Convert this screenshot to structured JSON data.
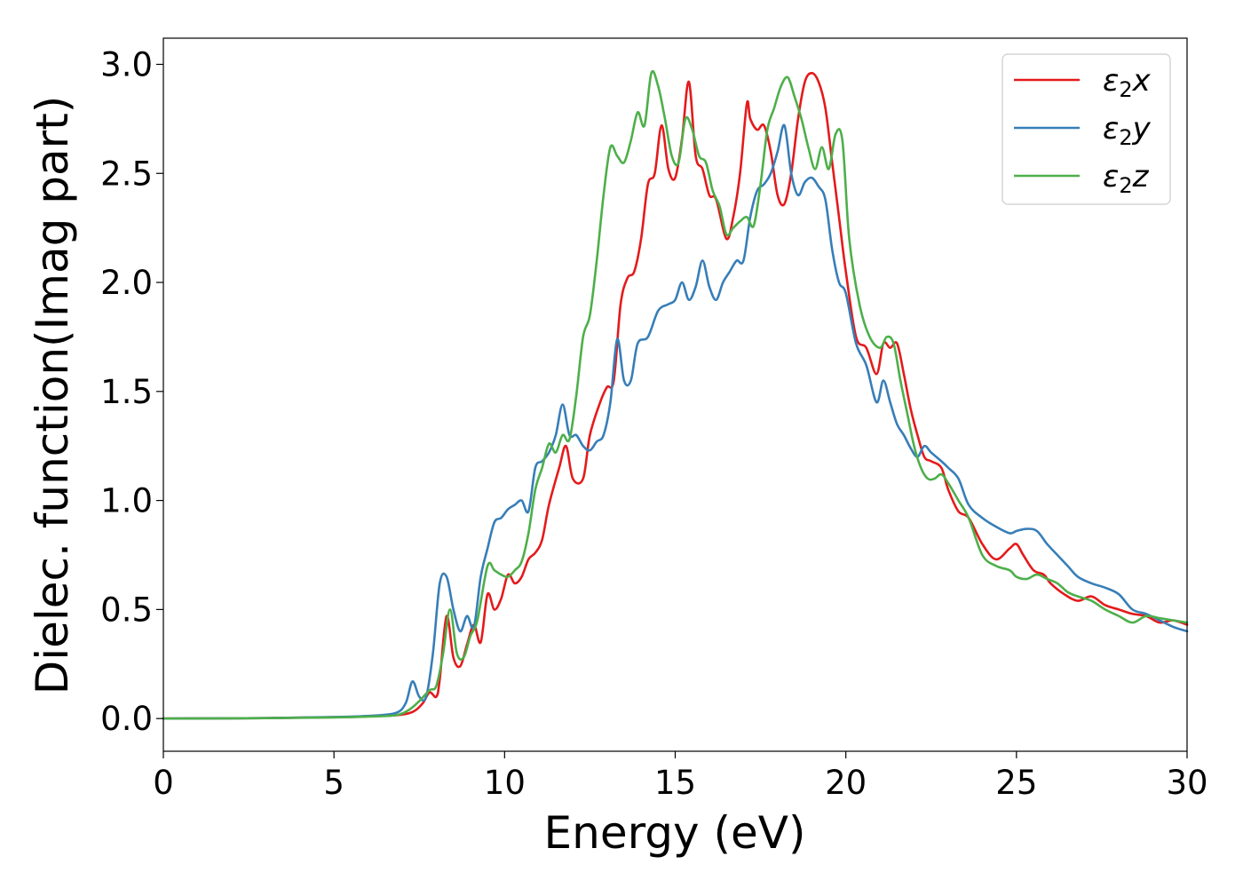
{
  "chart_data": {
    "type": "line",
    "title": "",
    "xlabel": "Energy (eV)",
    "ylabel": "Dielec. function(Imag part)",
    "xlim": [
      0,
      30
    ],
    "ylim": [
      -0.15,
      3.12
    ],
    "xticks": [
      "0",
      "5",
      "10",
      "15",
      "20",
      "25",
      "30"
    ],
    "yticks": [
      "0.0",
      "0.5",
      "1.0",
      "1.5",
      "2.0",
      "2.5",
      "3.0"
    ],
    "grid": false,
    "legend_position": "top-right",
    "series": [
      {
        "name": "ε2x",
        "label_base": "ε",
        "label_sub": "2",
        "label_var": "x",
        "color": "#e41a1c",
        "x": [
          0,
          3,
          5,
          6,
          6.8,
          7.3,
          7.6,
          7.8,
          8.0,
          8.1,
          8.3,
          8.5,
          8.7,
          8.9,
          9.1,
          9.3,
          9.5,
          9.7,
          9.9,
          10.1,
          10.3,
          10.5,
          10.7,
          10.9,
          11.1,
          11.3,
          11.6,
          11.8,
          12.0,
          12.3,
          12.5,
          12.8,
          13.0,
          13.2,
          13.4,
          13.6,
          13.8,
          14.0,
          14.2,
          14.4,
          14.6,
          14.8,
          15.0,
          15.2,
          15.4,
          15.6,
          15.8,
          16.0,
          16.2,
          16.5,
          16.7,
          16.9,
          17.1,
          17.2,
          17.4,
          17.6,
          17.8,
          18.0,
          18.2,
          18.4,
          18.6,
          18.8,
          19.0,
          19.2,
          19.4,
          19.6,
          19.8,
          20.0,
          20.3,
          20.6,
          20.9,
          21.1,
          21.3,
          21.5,
          21.7,
          21.9,
          22.1,
          22.3,
          22.5,
          22.8,
          23.0,
          23.3,
          23.6,
          24.0,
          24.4,
          24.8,
          25.0,
          25.2,
          25.5,
          25.8,
          26.0,
          26.4,
          26.8,
          27.2,
          27.6,
          28.0,
          28.4,
          28.8,
          29.2,
          29.6,
          30
        ],
        "y": [
          0,
          0.002,
          0.006,
          0.01,
          0.015,
          0.03,
          0.07,
          0.12,
          0.1,
          0.18,
          0.47,
          0.28,
          0.24,
          0.34,
          0.43,
          0.35,
          0.57,
          0.5,
          0.55,
          0.66,
          0.62,
          0.65,
          0.73,
          0.76,
          0.82,
          0.98,
          1.15,
          1.25,
          1.1,
          1.1,
          1.3,
          1.45,
          1.52,
          1.55,
          1.9,
          2.02,
          2.05,
          2.2,
          2.45,
          2.5,
          2.72,
          2.52,
          2.48,
          2.66,
          2.92,
          2.58,
          2.52,
          2.4,
          2.38,
          2.2,
          2.3,
          2.5,
          2.82,
          2.75,
          2.7,
          2.72,
          2.6,
          2.4,
          2.36,
          2.5,
          2.75,
          2.92,
          2.96,
          2.92,
          2.8,
          2.55,
          2.3,
          2.05,
          1.75,
          1.7,
          1.58,
          1.72,
          1.7,
          1.72,
          1.58,
          1.42,
          1.3,
          1.2,
          1.18,
          1.15,
          1.05,
          0.95,
          0.92,
          0.8,
          0.73,
          0.78,
          0.8,
          0.75,
          0.68,
          0.66,
          0.62,
          0.57,
          0.54,
          0.56,
          0.52,
          0.5,
          0.48,
          0.47,
          0.44,
          0.45,
          0.43
        ]
      },
      {
        "name": "ε2y",
        "label_base": "ε",
        "label_sub": "2",
        "label_var": "y",
        "color": "#377eb8",
        "x": [
          0,
          3,
          5,
          6,
          6.8,
          7.1,
          7.3,
          7.5,
          7.7,
          7.9,
          8.1,
          8.3,
          8.5,
          8.7,
          8.9,
          9.1,
          9.3,
          9.5,
          9.7,
          9.9,
          10.1,
          10.3,
          10.5,
          10.7,
          10.9,
          11.1,
          11.3,
          11.5,
          11.7,
          11.9,
          12.1,
          12.3,
          12.5,
          12.7,
          12.9,
          13.1,
          13.3,
          13.5,
          13.7,
          13.9,
          14.2,
          14.5,
          14.8,
          15.0,
          15.2,
          15.4,
          15.6,
          15.8,
          16.0,
          16.2,
          16.4,
          16.6,
          16.8,
          17.0,
          17.2,
          17.4,
          17.6,
          17.8,
          18.0,
          18.2,
          18.4,
          18.6,
          18.8,
          19.0,
          19.2,
          19.4,
          19.6,
          19.8,
          20.0,
          20.3,
          20.6,
          20.9,
          21.1,
          21.3,
          21.5,
          21.7,
          21.9,
          22.1,
          22.3,
          22.5,
          22.8,
          23.0,
          23.3,
          23.6,
          24.0,
          24.4,
          24.8,
          25.0,
          25.3,
          25.6,
          25.9,
          26.2,
          26.5,
          26.8,
          27.2,
          27.6,
          28.0,
          28.4,
          28.8,
          29.2,
          29.6,
          30
        ],
        "y": [
          0,
          0.002,
          0.007,
          0.012,
          0.025,
          0.07,
          0.17,
          0.1,
          0.1,
          0.3,
          0.62,
          0.65,
          0.5,
          0.4,
          0.47,
          0.42,
          0.65,
          0.78,
          0.9,
          0.92,
          0.96,
          0.98,
          1.0,
          0.95,
          1.15,
          1.18,
          1.22,
          1.3,
          1.44,
          1.3,
          1.3,
          1.25,
          1.23,
          1.27,
          1.3,
          1.45,
          1.74,
          1.55,
          1.55,
          1.72,
          1.75,
          1.87,
          1.9,
          1.92,
          2.0,
          1.92,
          1.98,
          2.1,
          1.98,
          1.92,
          2.0,
          2.05,
          2.1,
          2.1,
          2.3,
          2.42,
          2.45,
          2.5,
          2.6,
          2.72,
          2.5,
          2.4,
          2.46,
          2.48,
          2.44,
          2.38,
          2.15,
          2.0,
          1.95,
          1.72,
          1.62,
          1.45,
          1.55,
          1.45,
          1.35,
          1.3,
          1.24,
          1.2,
          1.25,
          1.22,
          1.18,
          1.15,
          1.1,
          0.98,
          0.92,
          0.88,
          0.85,
          0.86,
          0.87,
          0.86,
          0.8,
          0.75,
          0.7,
          0.65,
          0.62,
          0.6,
          0.57,
          0.5,
          0.48,
          0.45,
          0.42,
          0.4
        ]
      },
      {
        "name": "ε2z",
        "label_base": "ε",
        "label_sub": "2",
        "label_var": "z",
        "color": "#4daf4a",
        "x": [
          0,
          3,
          5,
          6,
          6.8,
          7.2,
          7.5,
          7.8,
          8.0,
          8.2,
          8.4,
          8.6,
          8.8,
          9.0,
          9.2,
          9.5,
          9.7,
          9.9,
          10.1,
          10.3,
          10.5,
          10.7,
          10.9,
          11.1,
          11.3,
          11.5,
          11.7,
          11.9,
          12.1,
          12.3,
          12.5,
          12.7,
          12.9,
          13.1,
          13.3,
          13.5,
          13.7,
          13.9,
          14.1,
          14.3,
          14.5,
          14.7,
          14.9,
          15.1,
          15.3,
          15.5,
          15.7,
          15.9,
          16.1,
          16.3,
          16.5,
          16.7,
          16.9,
          17.1,
          17.3,
          17.5,
          17.7,
          17.9,
          18.1,
          18.3,
          18.5,
          18.7,
          18.9,
          19.1,
          19.3,
          19.5,
          19.7,
          19.9,
          20.1,
          20.4,
          20.7,
          21.0,
          21.2,
          21.4,
          21.6,
          21.8,
          22.0,
          22.2,
          22.4,
          22.6,
          22.8,
          23.0,
          23.3,
          23.6,
          24.0,
          24.4,
          24.8,
          25.0,
          25.3,
          25.6,
          25.9,
          26.2,
          26.5,
          26.8,
          27.2,
          27.6,
          28.0,
          28.4,
          28.8,
          29.2,
          29.6,
          30
        ],
        "y": [
          0,
          0.002,
          0.005,
          0.009,
          0.015,
          0.04,
          0.08,
          0.13,
          0.15,
          0.3,
          0.5,
          0.3,
          0.28,
          0.38,
          0.45,
          0.7,
          0.68,
          0.66,
          0.65,
          0.68,
          0.72,
          0.85,
          1.05,
          1.15,
          1.26,
          1.22,
          1.3,
          1.28,
          1.48,
          1.75,
          1.85,
          2.1,
          2.4,
          2.62,
          2.58,
          2.55,
          2.65,
          2.78,
          2.72,
          2.96,
          2.9,
          2.75,
          2.58,
          2.55,
          2.75,
          2.7,
          2.58,
          2.55,
          2.42,
          2.35,
          2.22,
          2.25,
          2.28,
          2.3,
          2.26,
          2.45,
          2.7,
          2.8,
          2.9,
          2.94,
          2.85,
          2.75,
          2.62,
          2.52,
          2.62,
          2.52,
          2.68,
          2.65,
          2.2,
          1.9,
          1.75,
          1.7,
          1.75,
          1.72,
          1.55,
          1.4,
          1.25,
          1.15,
          1.1,
          1.1,
          1.12,
          1.08,
          1.0,
          0.92,
          0.75,
          0.7,
          0.68,
          0.65,
          0.64,
          0.66,
          0.64,
          0.62,
          0.58,
          0.56,
          0.54,
          0.5,
          0.47,
          0.44,
          0.47,
          0.46,
          0.45,
          0.44
        ]
      }
    ]
  }
}
